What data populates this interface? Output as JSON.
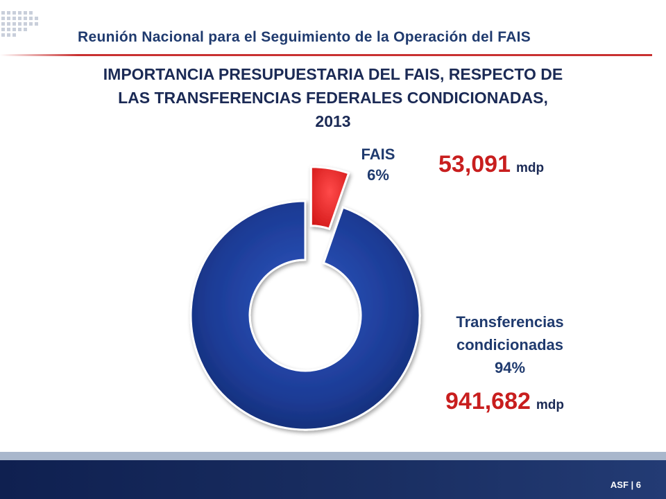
{
  "header": {
    "title": "Reunión Nacional para el Seguimiento de la Operación del FAIS"
  },
  "slide_title_lines": [
    "IMPORTANCIA PRESUPUESTARIA DEL FAIS, RESPECTO DE",
    "LAS TRANSFERENCIAS FEDERALES CONDICIONADAS,",
    "2013"
  ],
  "chart_data": {
    "type": "pie",
    "donut": true,
    "categories": [
      "FAIS",
      "Transferencias condicionadas"
    ],
    "values": [
      53091,
      941682
    ],
    "percent_labels": [
      "6%",
      "94%"
    ],
    "value_labels": [
      "53,091",
      "941,682"
    ],
    "unit": "mdp",
    "colors": [
      "#e32626",
      "#1c3b95"
    ],
    "exploded": "FAIS"
  },
  "labels": {
    "fais_name": "FAIS",
    "fais_pct": "6%",
    "fais_value": "53,091",
    "trans_name_line1": "Transferencias",
    "trans_name_line2": "condicionadas",
    "trans_pct": "94%",
    "trans_value": "941,682",
    "unit": "mdp"
  },
  "footer": {
    "text": "ASF | 6"
  }
}
